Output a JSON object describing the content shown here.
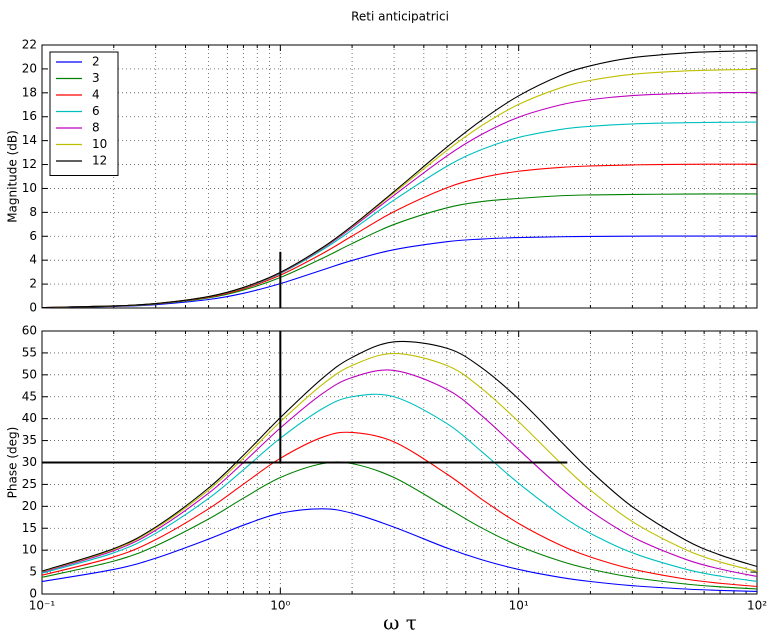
{
  "chart_data": [
    {
      "type": "line",
      "title": "Reti anticipatrici",
      "y_label": "Magnitude (dB)",
      "xscale": "log",
      "grid": true,
      "legend": "upper left",
      "x": [
        0.1,
        0.2,
        0.3,
        0.5,
        0.7,
        1,
        1.5,
        2,
        3,
        5,
        7,
        10,
        15,
        20,
        30,
        50,
        70,
        100
      ],
      "xlim": [
        0.1,
        100
      ],
      "xticks": [
        0.1,
        1,
        10,
        100
      ],
      "xminorticks": [
        0.2,
        0.3,
        0.4,
        0.5,
        0.6,
        0.7,
        0.8,
        0.9,
        2,
        3,
        4,
        5,
        6,
        7,
        8,
        9,
        20,
        30,
        40,
        50,
        60,
        70,
        80,
        90
      ],
      "ylim": [
        0,
        22
      ],
      "yticks": [
        0,
        2,
        4,
        6,
        8,
        10,
        12,
        14,
        16,
        18,
        20,
        22
      ],
      "series": [
        {
          "name": "2",
          "color": "#0000ff",
          "values": [
            0.03,
            0.13,
            0.28,
            0.71,
            1.23,
            2.04,
            3.18,
            3.98,
            4.88,
            5.55,
            5.77,
            5.89,
            5.96,
            5.99,
            6.01,
            6.02,
            6.02,
            6.02
          ]
        },
        {
          "name": "3",
          "color": "#008000",
          "values": [
            0.04,
            0.15,
            0.33,
            0.85,
            1.5,
            2.55,
            4.15,
            5.39,
            6.99,
            8.38,
            8.9,
            9.17,
            9.39,
            9.46,
            9.5,
            9.53,
            9.54,
            9.54
          ]
        },
        {
          "name": "4",
          "color": "#ff0000",
          "values": [
            0.04,
            0.16,
            0.35,
            0.9,
            1.6,
            2.75,
            4.55,
            6.02,
            8.06,
            10.06,
            10.9,
            11.44,
            11.76,
            11.88,
            11.97,
            12.02,
            12.03,
            12.03
          ]
        },
        {
          "name": "6",
          "color": "#00bfbf",
          "values": [
            0.04,
            0.17,
            0.36,
            0.94,
            1.67,
            2.89,
            4.86,
            6.53,
            9.03,
            11.86,
            13.26,
            14.27,
            14.94,
            15.2,
            15.4,
            15.5,
            15.53,
            15.55
          ]
        },
        {
          "name": "8",
          "color": "#bf00bf",
          "values": [
            0.04,
            0.17,
            0.37,
            0.95,
            1.7,
            2.94,
            4.97,
            6.73,
            9.43,
            12.72,
            14.52,
            15.96,
            16.99,
            17.43,
            17.77,
            17.95,
            18.01,
            18.03
          ]
        },
        {
          "name": "10",
          "color": "#bfbf00",
          "values": [
            0.04,
            0.17,
            0.37,
            0.96,
            1.71,
            2.97,
            5.02,
            6.82,
            9.63,
            13.18,
            15.26,
            17.03,
            18.42,
            19.04,
            19.55,
            19.83,
            19.91,
            19.96
          ]
        },
        {
          "name": "12",
          "color": "#000000",
          "values": [
            0.04,
            0.17,
            0.37,
            0.96,
            1.72,
            2.98,
            5.05,
            6.87,
            9.74,
            13.46,
            15.72,
            17.75,
            19.46,
            20.26,
            20.94,
            21.34,
            21.46,
            21.52
          ]
        }
      ],
      "lines": [
        {
          "x": [
            1,
            1
          ],
          "y": [
            0,
            4.7
          ],
          "color": "#000000"
        }
      ]
    },
    {
      "type": "line",
      "y_label": "Phase (deg)",
      "x_label": "ω τ",
      "xscale": "log",
      "grid": true,
      "x": [
        0.1,
        0.2,
        0.3,
        0.5,
        0.7,
        1,
        1.5,
        2,
        3,
        5,
        7,
        10,
        15,
        20,
        30,
        50,
        70,
        100
      ],
      "xlim": [
        0.1,
        100
      ],
      "xticks": [
        {
          "value": 0.1,
          "label": "10⁻¹"
        },
        {
          "value": 1,
          "label": "10⁰"
        },
        {
          "value": 10,
          "label": "10¹"
        },
        {
          "value": 100,
          "label": "10²"
        }
      ],
      "xminorticks": [
        0.2,
        0.3,
        0.4,
        0.5,
        0.6,
        0.7,
        0.8,
        0.9,
        2,
        3,
        4,
        5,
        6,
        7,
        8,
        9,
        20,
        30,
        40,
        50,
        60,
        70,
        80,
        90
      ],
      "ylim": [
        0,
        60
      ],
      "yticks": [
        0,
        5,
        10,
        15,
        20,
        25,
        30,
        35,
        40,
        45,
        50,
        55,
        60
      ],
      "series": [
        {
          "color": "#0000ff",
          "values": [
            2.85,
            5.6,
            8.17,
            12.53,
            15.7,
            18.43,
            19.44,
            18.43,
            15.26,
            10.49,
            7.82,
            5.6,
            3.78,
            2.85,
            1.9,
            1.14,
            0.82,
            0.58
          ]
        },
        {
          "color": "#008000",
          "values": [
            3.8,
            7.5,
            10.99,
            17.11,
            21.86,
            26.57,
            29.74,
            29.74,
            26.57,
            19.66,
            15.07,
            10.99,
            7.5,
            5.67,
            3.8,
            2.28,
            1.63,
            1.15
          ]
        },
        {
          "color": "#ff0000",
          "values": [
            4.28,
            8.45,
            12.41,
            19.44,
            25.06,
            30.96,
            35.75,
            36.86,
            34.7,
            27.35,
            21.61,
            16.09,
            11.12,
            8.45,
            5.68,
            3.42,
            2.45,
            1.72
          ]
        },
        {
          "color": "#00bfbf",
          "values": [
            4.76,
            9.4,
            13.84,
            21.81,
            28.34,
            35.54,
            42.27,
            45,
            45,
            38.88,
            32.47,
            25.25,
            17.99,
            13.84,
            9.4,
            5.69,
            4.08,
            2.86
          ]
        },
        {
          "color": "#bf00bf",
          "values": [
            4.99,
            9.88,
            14.55,
            22.99,
            29.99,
            37.87,
            45.69,
            49.39,
            51.01,
            46.68,
            40.68,
            32.95,
            24.26,
            18.94,
            13.02,
            7.94,
            5.7,
            4
          ]
        },
        {
          "color": "#bfbf00",
          "values": [
            5.14,
            10.16,
            14.98,
            23.71,
            30.99,
            39.29,
            47.78,
            52.12,
            54.87,
            52.12,
            46.88,
            39.29,
            29.88,
            23.71,
            16.52,
            10.16,
            7.31,
            5.14
          ]
        },
        {
          "color": "#000000",
          "values": [
            5.23,
            10.36,
            15.27,
            24.18,
            31.65,
            40.24,
            49.18,
            53.97,
            57.53,
            56.07,
            51.61,
            44.48,
            34.85,
            28.1,
            19.89,
            12.35,
            8.91,
            6.27
          ]
        }
      ],
      "lines": [
        {
          "x": [
            1,
            1
          ],
          "y": [
            30,
            60
          ],
          "color": "#000000"
        },
        {
          "x": [
            0.1,
            16
          ],
          "y": [
            30,
            30
          ],
          "color": "#000000"
        }
      ]
    }
  ]
}
